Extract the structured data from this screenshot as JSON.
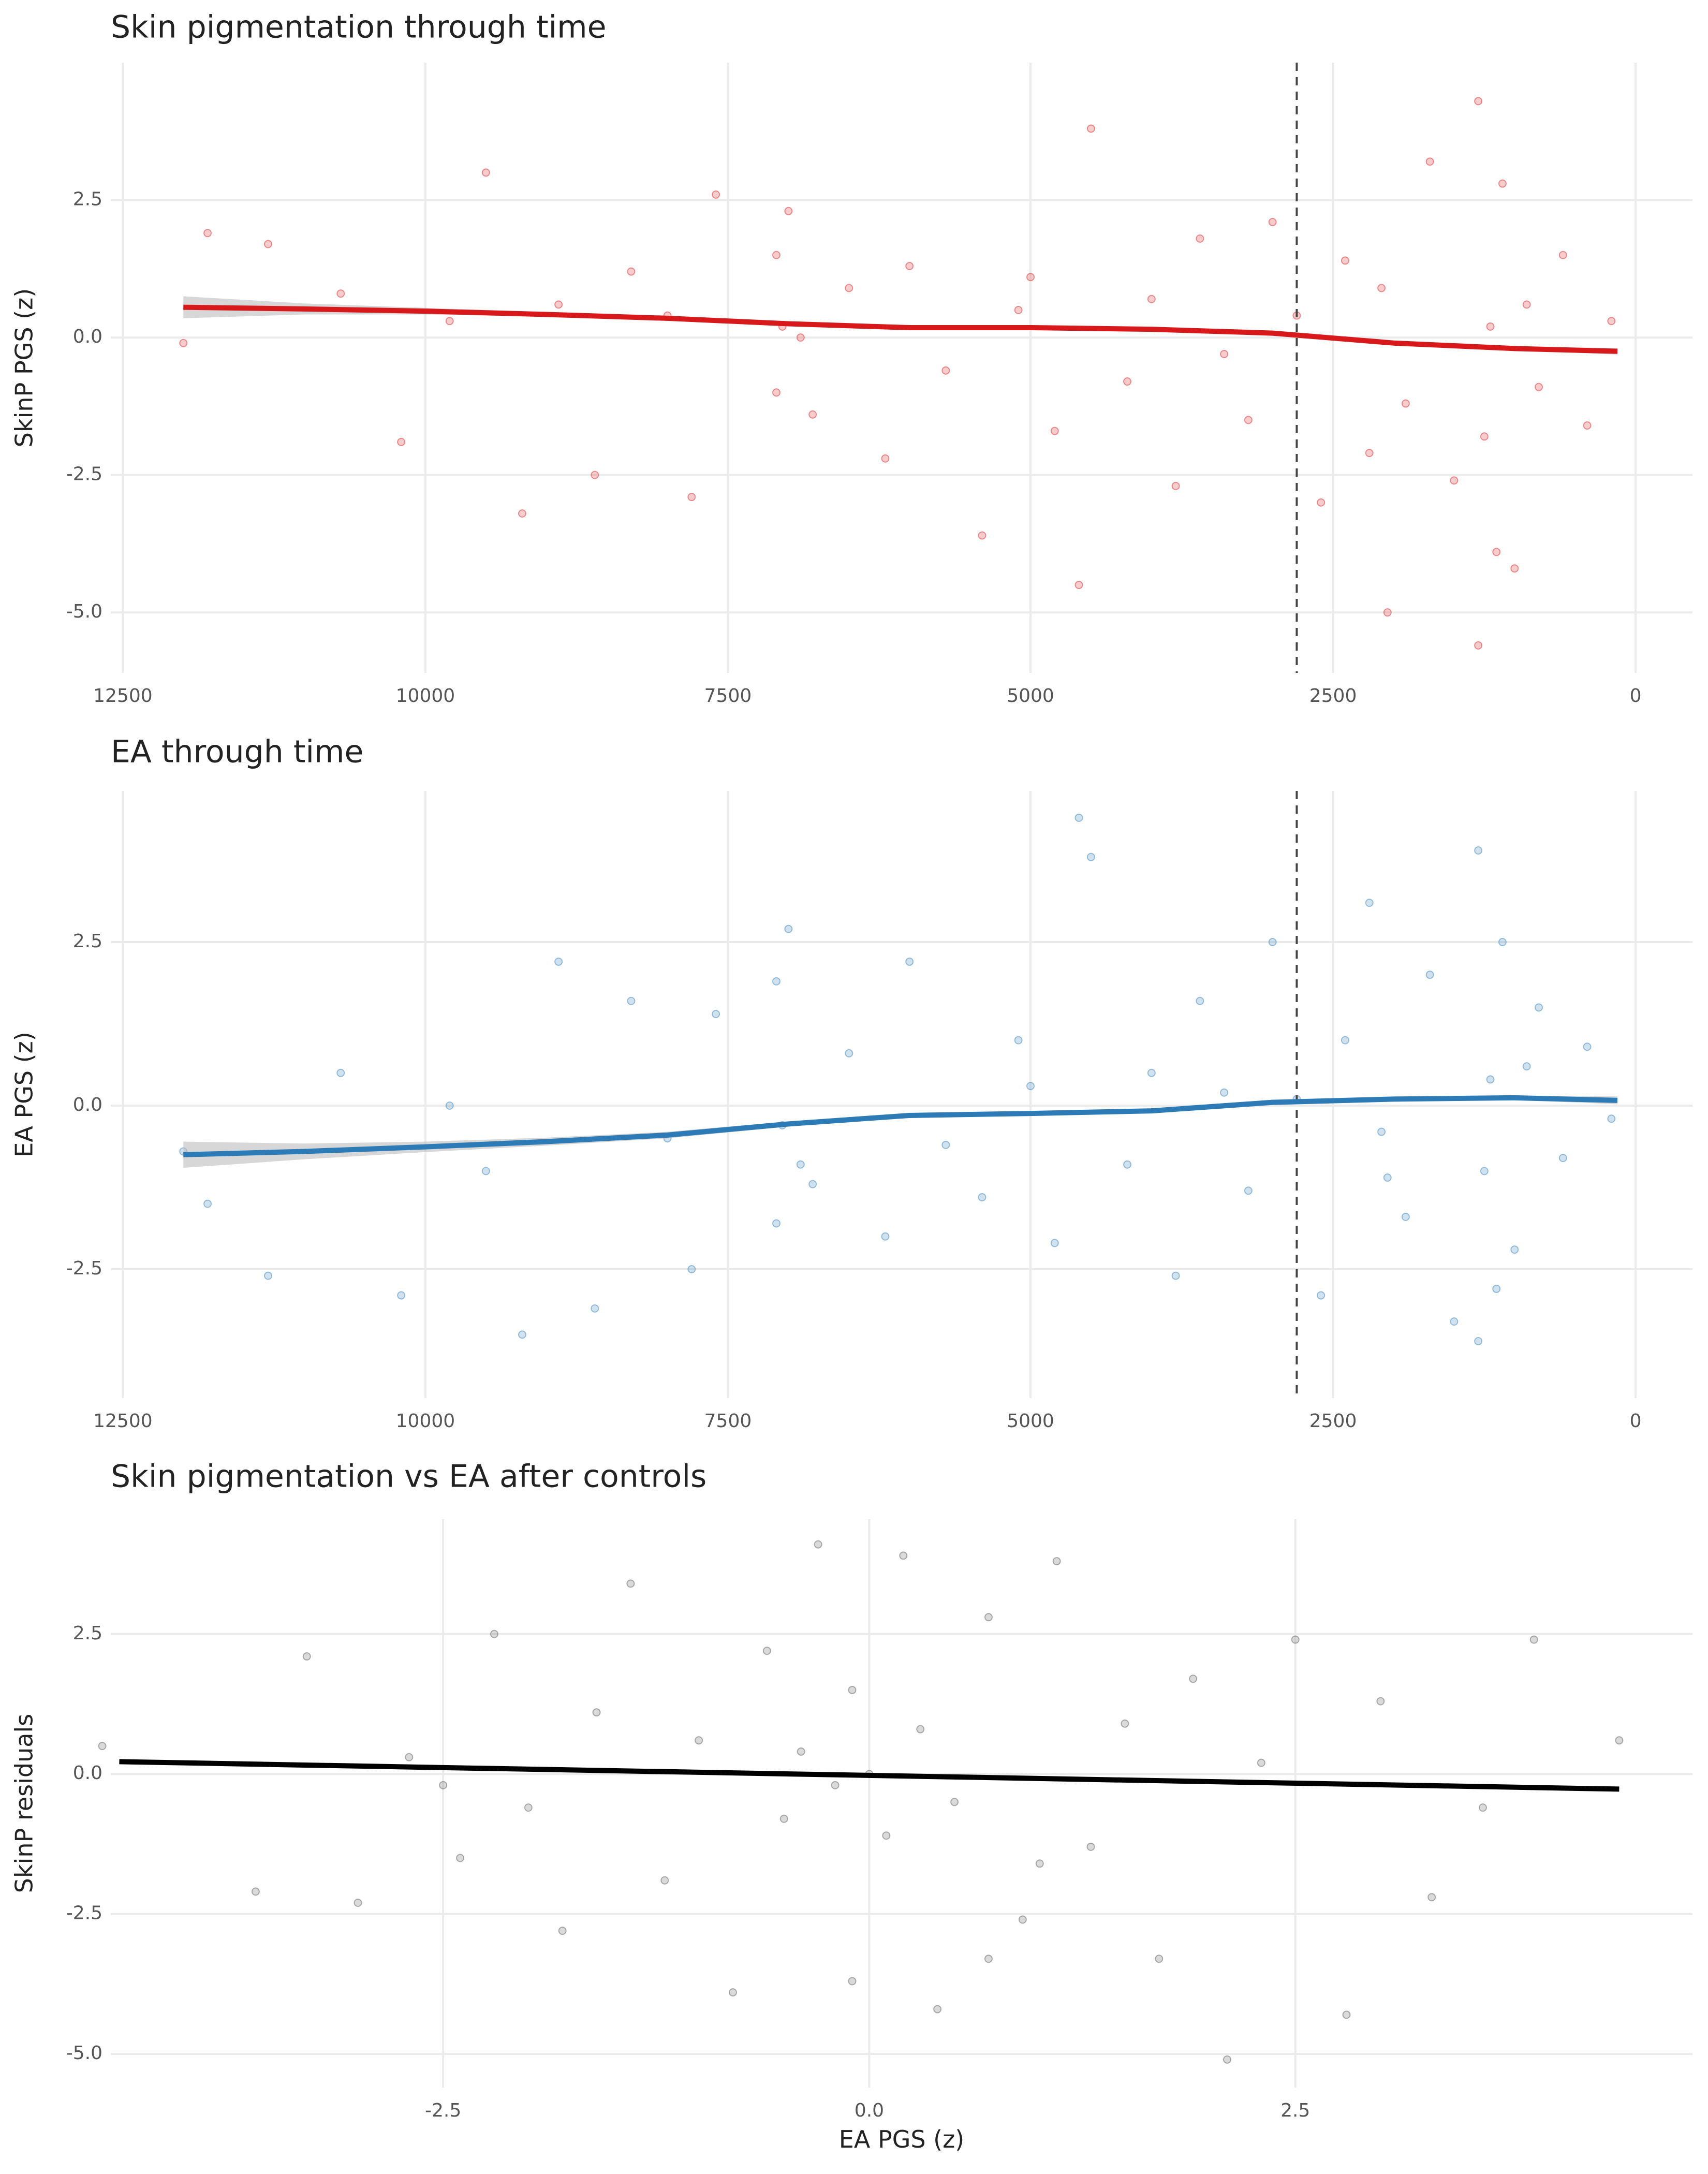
{
  "chart_data": [
    {
      "type": "scatter",
      "title": "Skin pigmentation through time",
      "y_label": "SkinP PGS (z)",
      "xlim": [
        12600,
        -470
      ],
      "ylim": [
        -6.1,
        5.0
      ],
      "xticks": [
        12500,
        10000,
        7500,
        5000,
        2500,
        0
      ],
      "yticks": [
        2.5,
        {
          "value": 0,
          "label": "0.0"
        },
        -2.5,
        {
          "value": -5,
          "label": "-5.0"
        }
      ],
      "grid": true,
      "vline": 2800,
      "color": "#d7191c",
      "x": [
        12000,
        11800,
        11300,
        10700,
        10200,
        9800,
        9500,
        9200,
        8900,
        8600,
        8300,
        8000,
        7800,
        7600,
        7100,
        7100,
        7050,
        7000,
        6800,
        6500,
        6200,
        6000,
        5700,
        5400,
        5100,
        5000,
        4800,
        4500,
        4200,
        4000,
        3800,
        3600,
        3400,
        3200,
        3000,
        2800,
        2600,
        2400,
        2200,
        2100,
        1900,
        1700,
        1500,
        1300,
        1250,
        1200,
        1150,
        1100,
        1000,
        900,
        800,
        600,
        400,
        200,
        2050,
        4600,
        1300,
        6900
      ],
      "y": [
        -0.1,
        1.9,
        1.7,
        0.8,
        -1.9,
        0.3,
        3.0,
        -3.2,
        0.6,
        -2.5,
        1.2,
        0.4,
        -2.9,
        2.6,
        -1.0,
        1.5,
        0.2,
        2.3,
        -1.4,
        0.9,
        -2.2,
        1.3,
        -0.6,
        -3.6,
        0.5,
        1.1,
        -1.7,
        3.8,
        -0.8,
        0.7,
        -2.7,
        1.8,
        -0.3,
        -1.5,
        2.1,
        0.4,
        -3.0,
        1.4,
        -2.1,
        0.9,
        -1.2,
        3.2,
        -2.6,
        4.3,
        -1.8,
        0.2,
        -3.9,
        2.8,
        -4.2,
        0.6,
        -0.9,
        1.5,
        -1.6,
        0.3,
        -5.0,
        -4.5,
        -5.6,
        0.0
      ],
      "fit": {
        "color": "#d7191c",
        "ribbon_color": "#bdbdbd",
        "x": [
          12000,
          11000,
          10000,
          9000,
          8000,
          7000,
          6000,
          5000,
          4000,
          3000,
          2000,
          1000,
          150
        ],
        "y": [
          0.55,
          0.52,
          0.48,
          0.42,
          0.35,
          0.25,
          0.18,
          0.18,
          0.15,
          0.08,
          -0.1,
          -0.2,
          -0.25
        ],
        "lower": [
          0.35,
          0.42,
          0.42,
          0.38,
          0.31,
          0.21,
          0.15,
          0.15,
          0.12,
          0.05,
          -0.13,
          -0.23,
          -0.31
        ],
        "upper": [
          0.75,
          0.62,
          0.54,
          0.46,
          0.39,
          0.29,
          0.21,
          0.21,
          0.18,
          0.11,
          -0.07,
          -0.17,
          -0.19
        ]
      }
    },
    {
      "type": "scatter",
      "title": "EA through time",
      "y_label": "EA PGS (z)",
      "xlim": [
        12600,
        -470
      ],
      "ylim": [
        -4.47,
        4.81
      ],
      "xticks": [
        12500,
        10000,
        7500,
        5000,
        2500,
        0
      ],
      "yticks": [
        2.5,
        {
          "value": 0,
          "label": "0.0"
        },
        -2.5
      ],
      "grid": true,
      "vline": 2800,
      "color": "#2c7bb6",
      "x": [
        12000,
        11800,
        11300,
        10700,
        10200,
        9800,
        9500,
        9200,
        8900,
        8600,
        8300,
        8000,
        7800,
        7600,
        7100,
        7100,
        7050,
        7000,
        6800,
        6500,
        6200,
        6000,
        5700,
        5400,
        5100,
        5000,
        4800,
        4500,
        4200,
        4000,
        3800,
        3600,
        3400,
        3200,
        3000,
        2800,
        2600,
        2400,
        2200,
        2100,
        1900,
        1700,
        1500,
        1300,
        1250,
        1200,
        1150,
        1100,
        1000,
        900,
        800,
        600,
        400,
        200,
        2050,
        4600,
        1300,
        6900
      ],
      "y": [
        -0.7,
        -1.5,
        -2.6,
        0.5,
        -2.9,
        0.0,
        -1.0,
        -3.5,
        2.2,
        -3.1,
        1.6,
        -0.5,
        -2.5,
        1.4,
        -1.8,
        1.9,
        -0.3,
        2.7,
        -1.2,
        0.8,
        -2.0,
        2.2,
        -0.6,
        -1.4,
        1.0,
        0.3,
        -2.1,
        3.8,
        -0.9,
        0.5,
        -2.6,
        1.6,
        0.2,
        -1.3,
        2.5,
        0.1,
        -2.9,
        1.0,
        3.1,
        -0.4,
        -1.7,
        2.0,
        -3.3,
        3.9,
        -1.0,
        0.4,
        -2.8,
        2.5,
        -2.2,
        0.6,
        1.5,
        -0.8,
        0.9,
        -0.2,
        -1.1,
        4.4,
        -3.6,
        -0.9
      ],
      "fit": {
        "color": "#2c7bb6",
        "ribbon_color": "#bdbdbd",
        "x": [
          12000,
          11000,
          10000,
          9000,
          8000,
          7000,
          6000,
          5000,
          4000,
          3000,
          2000,
          1000,
          150
        ],
        "y": [
          -0.75,
          -0.7,
          -0.63,
          -0.55,
          -0.45,
          -0.28,
          -0.15,
          -0.12,
          -0.08,
          0.05,
          0.1,
          0.12,
          0.08
        ],
        "lower": [
          -0.95,
          -0.82,
          -0.71,
          -0.61,
          -0.5,
          -0.32,
          -0.19,
          -0.15,
          -0.11,
          0.01,
          0.06,
          0.09,
          0.02
        ],
        "upper": [
          -0.55,
          -0.58,
          -0.55,
          -0.49,
          -0.4,
          -0.24,
          -0.11,
          -0.09,
          -0.05,
          0.09,
          0.14,
          0.15,
          0.14
        ]
      }
    },
    {
      "type": "scatter",
      "title": "Skin pigmentation vs EA after controls",
      "y_label": "SkinP residuals",
      "x_label": "EA PGS (z)",
      "xlim": [
        -4.45,
        4.83
      ],
      "ylim": [
        -5.6,
        4.55
      ],
      "xticks": [
        -2.5,
        {
          "value": 0,
          "label": "0.0"
        },
        2.5
      ],
      "yticks": [
        2.5,
        {
          "value": 0,
          "label": "0.0"
        },
        -2.5,
        {
          "value": -5,
          "label": "-5.0"
        }
      ],
      "grid": true,
      "color": "#555555",
      "x": [
        -4.5,
        -3.6,
        -3.3,
        -3.0,
        -2.7,
        -2.4,
        -2.2,
        -2.0,
        -1.8,
        -1.6,
        -1.4,
        -1.2,
        -1.0,
        -0.8,
        -0.6,
        -0.5,
        -0.4,
        -0.3,
        -0.2,
        -0.1,
        0.0,
        0.1,
        0.2,
        0.3,
        0.4,
        0.5,
        0.7,
        0.9,
        1.1,
        1.3,
        1.5,
        1.7,
        1.9,
        2.1,
        2.3,
        2.5,
        2.8,
        3.0,
        3.3,
        3.6,
        3.9,
        4.4,
        -0.1,
        1.0,
        0.7,
        -2.5
      ],
      "y": [
        0.5,
        -2.1,
        2.1,
        -2.3,
        0.3,
        -1.5,
        2.5,
        -0.6,
        -2.8,
        1.1,
        3.4,
        -1.9,
        0.6,
        -3.9,
        2.2,
        -0.8,
        0.4,
        4.1,
        -0.2,
        1.5,
        0.0,
        -1.1,
        3.9,
        0.8,
        -4.2,
        -0.5,
        2.8,
        -2.6,
        3.8,
        -1.3,
        0.9,
        -3.3,
        1.7,
        -5.1,
        0.2,
        2.4,
        -4.3,
        1.3,
        -2.2,
        -0.6,
        2.4,
        0.6,
        -3.7,
        -1.6,
        -3.3,
        -0.2
      ],
      "fit": {
        "color": "#000000",
        "x": [
          -4.4,
          4.4
        ],
        "y": [
          0.22,
          -0.27
        ]
      }
    }
  ]
}
